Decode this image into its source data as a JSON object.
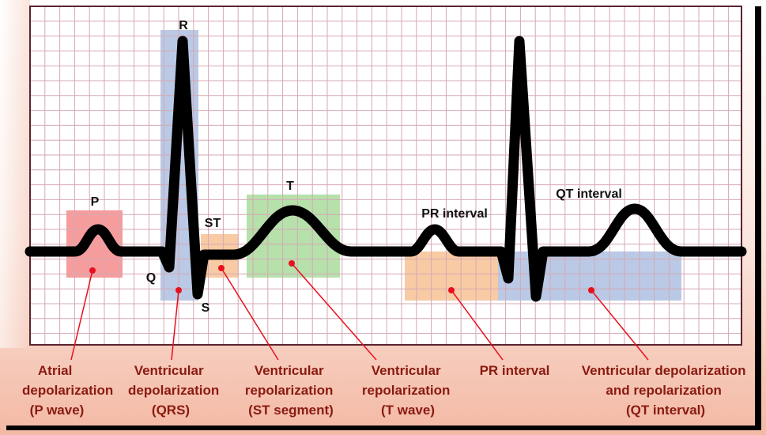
{
  "wave_labels": {
    "p": "P",
    "q": "Q",
    "r": "R",
    "s": "S",
    "st": "ST",
    "t": "T",
    "pr_interval": "PR interval",
    "qt_interval": "QT interval"
  },
  "captions": [
    {
      "lines": [
        "Atrial",
        "depolarization",
        "(P wave)"
      ]
    },
    {
      "lines": [
        "Ventricular",
        "depolarization",
        "(QRS)"
      ]
    },
    {
      "lines": [
        "Ventricular",
        "repolarization",
        "(ST segment)"
      ]
    },
    {
      "lines": [
        "Ventricular",
        "repolarization",
        "(T wave)"
      ]
    },
    {
      "lines": [
        "PR interval"
      ]
    },
    {
      "lines": [
        "Ventricular depolarization",
        "and repolarization",
        "(QT interval)"
      ]
    }
  ],
  "colors": {
    "background_gradient_top": "#ffffff",
    "background_gradient_bottom": "#f3b9a4",
    "grid_line": "#d6a8b4",
    "grid_border": "#5a2430",
    "waveform": "#000000",
    "pointer": "#e8101e",
    "p_region": "#f48b8b",
    "qrs_region": "#aebfe0",
    "st_region": "#f7c59a",
    "t_region": "#a9dc9c",
    "pr_region": "#f7c59a",
    "qt_region": "#aebfe0",
    "caption_text": "#8a1a10"
  }
}
